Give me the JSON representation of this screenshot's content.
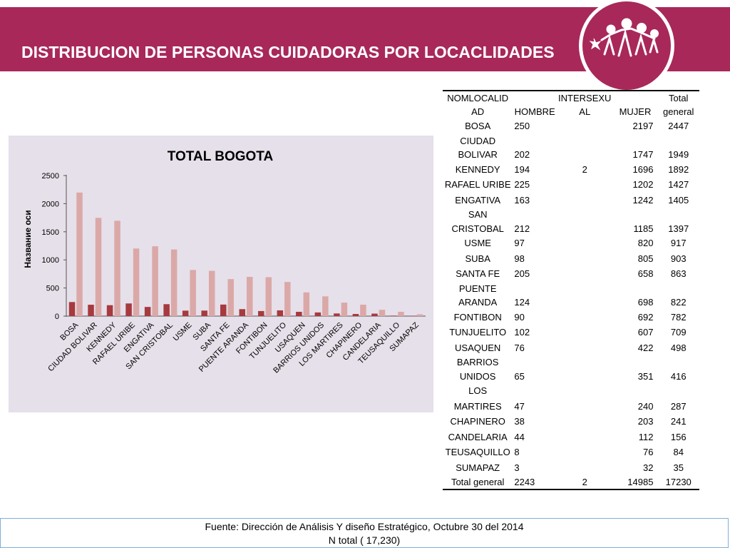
{
  "slide": {
    "title": "DISTRIBUCION DE PERSONAS CUIDADORAS POR LOCACLIDADES"
  },
  "colors": {
    "banner": "#a8285a",
    "series_hombre": "#a63a3e",
    "series_mujer": "#dba8a8",
    "chart_background": "#e6e0ea"
  },
  "logo": {
    "icon": "people-holding-hands-logo-icon"
  },
  "table": {
    "headers": [
      "NOMLOCALIDAD",
      "HOMBRE",
      "INTERSEXUAL",
      "MUJER",
      "Total general"
    ],
    "rows": [
      {
        "loc": "BOSA",
        "hombre": "250",
        "intersexual": "",
        "mujer": "2197",
        "total": "2447"
      },
      {
        "loc": "CIUDAD BOLIVAR",
        "hombre": "202",
        "intersexual": "",
        "mujer": "1747",
        "total": "1949"
      },
      {
        "loc": "KENNEDY",
        "hombre": "194",
        "intersexual": "2",
        "mujer": "1696",
        "total": "1892"
      },
      {
        "loc": "RAFAEL URIBE",
        "hombre": "225",
        "intersexual": "",
        "mujer": "1202",
        "total": "1427"
      },
      {
        "loc": "ENGATIVA",
        "hombre": "163",
        "intersexual": "",
        "mujer": "1242",
        "total": "1405"
      },
      {
        "loc": "SAN CRISTOBAL",
        "hombre": "212",
        "intersexual": "",
        "mujer": "1185",
        "total": "1397"
      },
      {
        "loc": "USME",
        "hombre": "97",
        "intersexual": "",
        "mujer": "820",
        "total": "917"
      },
      {
        "loc": "SUBA",
        "hombre": "98",
        "intersexual": "",
        "mujer": "805",
        "total": "903"
      },
      {
        "loc": "SANTA FE",
        "hombre": "205",
        "intersexual": "",
        "mujer": "658",
        "total": "863"
      },
      {
        "loc": "PUENTE ARANDA",
        "hombre": "124",
        "intersexual": "",
        "mujer": "698",
        "total": "822"
      },
      {
        "loc": "FONTIBON",
        "hombre": "90",
        "intersexual": "",
        "mujer": "692",
        "total": "782"
      },
      {
        "loc": "TUNJUELITO",
        "hombre": "102",
        "intersexual": "",
        "mujer": "607",
        "total": "709"
      },
      {
        "loc": "USAQUEN",
        "hombre": "76",
        "intersexual": "",
        "mujer": "422",
        "total": "498"
      },
      {
        "loc": "BARRIOS UNIDOS",
        "hombre": "65",
        "intersexual": "",
        "mujer": "351",
        "total": "416"
      },
      {
        "loc": "LOS MARTIRES",
        "hombre": "47",
        "intersexual": "",
        "mujer": "240",
        "total": "287"
      },
      {
        "loc": "CHAPINERO",
        "hombre": "38",
        "intersexual": "",
        "mujer": "203",
        "total": "241"
      },
      {
        "loc": "CANDELARIA",
        "hombre": "44",
        "intersexual": "",
        "mujer": "112",
        "total": "156"
      },
      {
        "loc": "TEUSAQUILLO",
        "hombre": "8",
        "intersexual": "",
        "mujer": "76",
        "total": "84"
      },
      {
        "loc": "SUMAPAZ",
        "hombre": "3",
        "intersexual": "",
        "mujer": "32",
        "total": "35"
      }
    ],
    "total_row": {
      "loc": "Total general",
      "hombre": "2243",
      "intersexual": "2",
      "mujer": "14985",
      "total": "17230"
    }
  },
  "footer": {
    "line1": "Fuente: Dirección de Análisis Y diseño Estratégico, Octubre 30 del 2014",
    "line2": "N total ( 17,230)"
  },
  "chart_data": {
    "type": "bar",
    "title": "TOTAL BOGOTA",
    "xlabel": "",
    "ylabel": "Название оси",
    "ylim": [
      0,
      2500
    ],
    "yticks": [
      "0",
      "500",
      "1000",
      "1500",
      "2000",
      "2500"
    ],
    "grid": false,
    "categories": [
      "BOSA",
      "CIUDAD BOLIVAR",
      "KENNEDY",
      "RAFAEL URIBE",
      "ENGATIVA",
      "SAN CRISTOBAL",
      "USME",
      "SUBA",
      "SANTA FE",
      "PUENTE ARANDA",
      "FONTIBON",
      "TUNJUELITO",
      "USAQUEN",
      "BARRIOS UNIDOS",
      "LOS MARTIRES",
      "CHAPINERO",
      "CANDELARIA",
      "TEUSAQUILLO",
      "SUMAPAZ"
    ],
    "series": [
      {
        "values": [
          250,
          202,
          194,
          225,
          163,
          212,
          97,
          98,
          205,
          124,
          90,
          102,
          76,
          65,
          47,
          38,
          44,
          8,
          3
        ]
      },
      {
        "values": [
          2197,
          1747,
          1696,
          1202,
          1242,
          1185,
          820,
          805,
          658,
          698,
          692,
          607,
          422,
          351,
          240,
          203,
          112,
          76,
          32
        ]
      }
    ]
  }
}
